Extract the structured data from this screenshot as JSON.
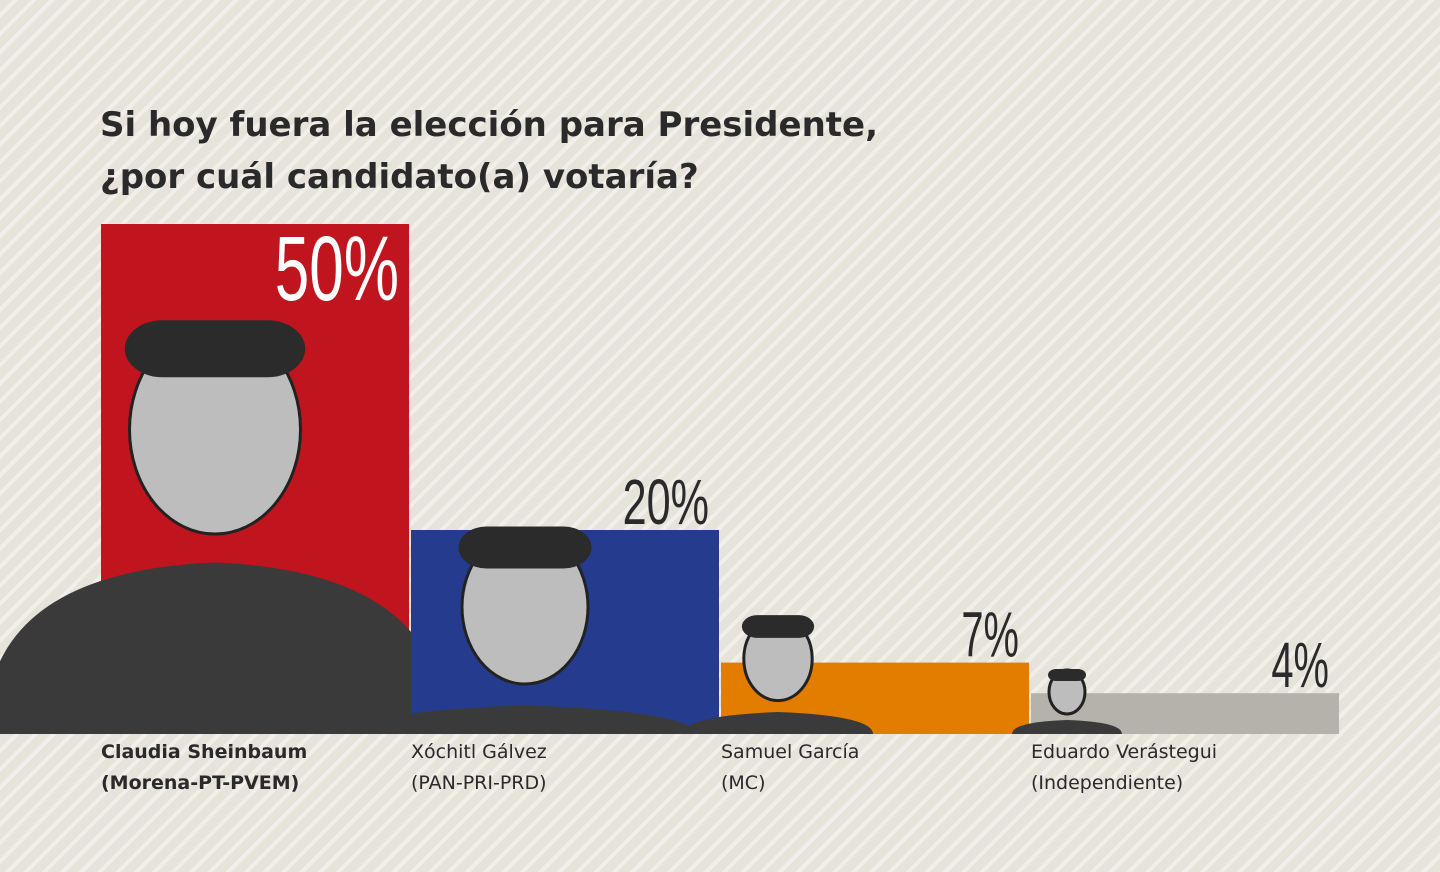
{
  "chart_data": {
    "type": "bar",
    "title": [
      "Si hoy fuera la elección para Presidente,",
      "¿por cuál candidato(a) votaría?"
    ],
    "categories": [
      "Claudia Sheinbaum",
      "Xóchitl Gálvez",
      "Samuel García",
      "Eduardo Verástegui"
    ],
    "parties": [
      "(Morena-PT-PVEM)",
      "(PAN-PRI-PRD)",
      "(MC)",
      "(Independiente)"
    ],
    "values": [
      50,
      20,
      7,
      4
    ],
    "value_labels": [
      "50%",
      "20%",
      "7%",
      "4%"
    ],
    "colors": [
      "#c0141e",
      "#253c8e",
      "#e27d00",
      "#b4b2aa"
    ]
  }
}
